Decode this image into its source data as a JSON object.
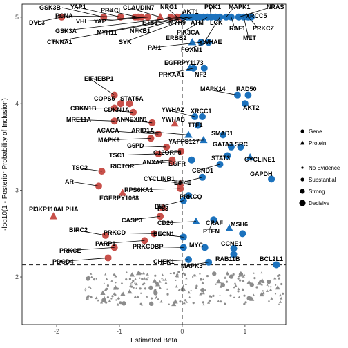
{
  "chart_data": {
    "type": "scatter",
    "xlabel": "Estimated Beta",
    "ylabel": "-log10(1 - Posterior Probability of Inclusion)",
    "xlim": [
      -2.55,
      1.65
    ],
    "ylim": [
      1.45,
      5.15
    ],
    "xticks": [
      -2,
      -1,
      0,
      1
    ],
    "yticks": [
      2,
      3,
      4,
      5
    ],
    "hline": 2.14,
    "vline": 0,
    "colors": {
      "negative": "#c8504a",
      "positive": "#1c72bd",
      "background": "#8c8c8c"
    },
    "legend": {
      "shape": {
        "entries": [
          "Gene",
          "Protein"
        ]
      },
      "size": {
        "entries": [
          "No Evidence",
          "Substantial",
          "Strong",
          "Decisive"
        ]
      }
    },
    "labeled_points": [
      {
        "label": "GSK3B",
        "x": -1.25,
        "y": 5.0,
        "shape": "circle",
        "color": "negative"
      },
      {
        "label": "DVL3",
        "x": -1.92,
        "y": 5.0,
        "shape": "circle",
        "color": "negative"
      },
      {
        "label": "YAP1",
        "x": -0.98,
        "y": 5.0,
        "shape": "circle",
        "color": "negative"
      },
      {
        "label": "PCNA",
        "x": -0.75,
        "y": 5.0,
        "shape": "circle",
        "color": "negative"
      },
      {
        "label": "PRKCI",
        "x": -0.7,
        "y": 5.0,
        "shape": "circle",
        "color": "negative"
      },
      {
        "label": "VHL",
        "x": -0.65,
        "y": 5.0,
        "shape": "circle",
        "color": "negative"
      },
      {
        "label": "YAP",
        "x": -0.55,
        "y": 5.0,
        "shape": "circle",
        "color": "negative"
      },
      {
        "label": "CLAUDIN7",
        "x": -0.35,
        "y": 5.0,
        "shape": "triangle",
        "color": "negative"
      },
      {
        "label": "ETS1",
        "x": -0.18,
        "y": 5.0,
        "shape": "circle",
        "color": "negative"
      },
      {
        "label": "NRG1",
        "x": -0.08,
        "y": 5.0,
        "shape": "circle",
        "color": "negative"
      },
      {
        "label": "GSK3A",
        "x": -0.02,
        "y": 5.0,
        "shape": "circle",
        "color": "negative"
      },
      {
        "label": "MYH11",
        "x": 0.02,
        "y": 5.0,
        "shape": "circle",
        "color": "positive"
      },
      {
        "label": "NFKB1",
        "x": 0.08,
        "y": 5.0,
        "shape": "circle",
        "color": "positive"
      },
      {
        "label": "CTNNA1",
        "x": 0.12,
        "y": 5.0,
        "shape": "circle",
        "color": "positive"
      },
      {
        "label": "SYK",
        "x": 0.16,
        "y": 5.0,
        "shape": "circle",
        "color": "positive"
      },
      {
        "label": "MYH9",
        "x": 0.22,
        "y": 5.0,
        "shape": "circle",
        "color": "positive"
      },
      {
        "label": "AKT1",
        "x": 0.28,
        "y": 5.0,
        "shape": "circle",
        "color": "positive"
      },
      {
        "label": "ATM",
        "x": 0.34,
        "y": 5.0,
        "shape": "circle",
        "color": "positive"
      },
      {
        "label": "PIK3CA",
        "x": 0.4,
        "y": 5.0,
        "shape": "circle",
        "color": "positive"
      },
      {
        "label": "PDK1",
        "x": 0.46,
        "y": 5.0,
        "shape": "circle",
        "color": "positive"
      },
      {
        "label": "LCK",
        "x": 0.53,
        "y": 5.0,
        "shape": "circle",
        "color": "positive"
      },
      {
        "label": "YWHAE",
        "x": 0.6,
        "y": 5.0,
        "shape": "circle",
        "color": "positive"
      },
      {
        "label": "MAPK1",
        "x": 0.7,
        "y": 5.0,
        "shape": "circle",
        "color": "positive"
      },
      {
        "label": "RAF1",
        "x": 0.78,
        "y": 5.0,
        "shape": "circle",
        "color": "positive"
      },
      {
        "label": "NRAS",
        "x": 0.9,
        "y": 5.0,
        "shape": "circle",
        "color": "positive"
      },
      {
        "label": "MET",
        "x": 0.98,
        "y": 5.0,
        "shape": "circle",
        "color": "positive"
      },
      {
        "label": "PRKCZ",
        "x": 1.05,
        "y": 5.0,
        "shape": "circle",
        "color": "positive"
      },
      {
        "label": "XRCC5",
        "x": 1.1,
        "y": 5.0,
        "shape": "circle",
        "color": "positive"
      },
      {
        "label": "ERBB2",
        "x": 0.16,
        "y": 4.71,
        "shape": "triangle",
        "color": "positive"
      },
      {
        "label": "PAI1",
        "x": 0.3,
        "y": 4.71,
        "shape": "circle",
        "color": "positive"
      },
      {
        "label": "FOXM1",
        "x": 0.42,
        "y": 4.71,
        "shape": "circle",
        "color": "positive"
      },
      {
        "label": "EGFRPY1173",
        "x": 0.12,
        "y": 4.41,
        "shape": "triangle",
        "color": "positive"
      },
      {
        "label": "PRKAA1",
        "x": 0.18,
        "y": 4.41,
        "shape": "circle",
        "color": "positive"
      },
      {
        "label": "NF2",
        "x": 0.35,
        "y": 4.41,
        "shape": "circle",
        "color": "positive"
      },
      {
        "label": "EIF4EBP1",
        "x": -1.08,
        "y": 4.1,
        "shape": "circle",
        "color": "negative"
      },
      {
        "label": "MAPK14",
        "x": 0.88,
        "y": 4.1,
        "shape": "circle",
        "color": "positive"
      },
      {
        "label": "RAD50",
        "x": 1.05,
        "y": 4.1,
        "shape": "circle",
        "color": "positive"
      },
      {
        "label": "COPS5",
        "x": -0.98,
        "y": 4.0,
        "shape": "circle",
        "color": "negative"
      },
      {
        "label": "STAT5A",
        "x": -0.84,
        "y": 4.0,
        "shape": "circle",
        "color": "negative"
      },
      {
        "label": "AKT2",
        "x": 1.0,
        "y": 4.0,
        "shape": "circle",
        "color": "positive"
      },
      {
        "label": "CDKN1B",
        "x": -1.08,
        "y": 3.95,
        "shape": "circle",
        "color": "negative"
      },
      {
        "label": "CDKN1A",
        "x": -0.78,
        "y": 3.9,
        "shape": "circle",
        "color": "negative"
      },
      {
        "label": "YWHAZ",
        "x": 0.2,
        "y": 3.85,
        "shape": "circle",
        "color": "positive"
      },
      {
        "label": "XRCC1",
        "x": 0.32,
        "y": 3.85,
        "shape": "circle",
        "color": "positive"
      },
      {
        "label": "MRE11A",
        "x": -1.08,
        "y": 3.8,
        "shape": "circle",
        "color": "negative"
      },
      {
        "label": "ANNEXIN1",
        "x": -0.48,
        "y": 3.78,
        "shape": "circle",
        "color": "negative"
      },
      {
        "label": "YWHAB",
        "x": -0.12,
        "y": 3.77,
        "shape": "triangle",
        "color": "negative"
      },
      {
        "label": "TTF1",
        "x": 0.25,
        "y": 3.75,
        "shape": "circle",
        "color": "positive"
      },
      {
        "label": "ACACA",
        "x": -0.38,
        "y": 3.65,
        "shape": "circle",
        "color": "negative"
      },
      {
        "label": "ARID1A",
        "x": 0.1,
        "y": 3.64,
        "shape": "triangle",
        "color": "positive"
      },
      {
        "label": "SMAD1",
        "x": 0.65,
        "y": 3.64,
        "shape": "circle",
        "color": "positive"
      },
      {
        "label": "MAPK9",
        "x": -0.5,
        "y": 3.6,
        "shape": "circle",
        "color": "negative"
      },
      {
        "label": "YAPPS127",
        "x": 0.34,
        "y": 3.58,
        "shape": "triangle",
        "color": "positive"
      },
      {
        "label": "G6PD",
        "x": -0.25,
        "y": 3.5,
        "shape": "circle",
        "color": "negative"
      },
      {
        "label": "GATA3",
        "x": 0.78,
        "y": 3.5,
        "shape": "circle",
        "color": "positive"
      },
      {
        "label": "SRC",
        "x": 0.93,
        "y": 3.5,
        "shape": "circle",
        "color": "positive"
      },
      {
        "label": "C12ORF5",
        "x": -0.02,
        "y": 3.45,
        "shape": "circle",
        "color": "negative"
      },
      {
        "label": "TSC1",
        "x": -0.38,
        "y": 3.42,
        "shape": "circle",
        "color": "negative"
      },
      {
        "label": "STAT3",
        "x": 0.72,
        "y": 3.4,
        "shape": "circle",
        "color": "positive"
      },
      {
        "label": "CYCLINE1",
        "x": 1.08,
        "y": 3.38,
        "shape": "triangle",
        "color": "positive"
      },
      {
        "label": "ANXA7",
        "x": -0.16,
        "y": 3.35,
        "shape": "circle",
        "color": "negative"
      },
      {
        "label": "EGFR",
        "x": 0.15,
        "y": 3.35,
        "shape": "circle",
        "color": "positive"
      },
      {
        "label": "RICTOR",
        "x": -0.16,
        "y": 3.33,
        "shape": "circle",
        "color": "negative"
      },
      {
        "label": "CCND1",
        "x": 0.6,
        "y": 3.3,
        "shape": "circle",
        "color": "positive"
      },
      {
        "label": "GAPDH",
        "x": 1.42,
        "y": 3.13,
        "shape": "circle",
        "color": "positive"
      },
      {
        "label": "TSC2",
        "x": -1.28,
        "y": 3.22,
        "shape": "circle",
        "color": "negative"
      },
      {
        "label": "EIF4E",
        "x": 0.32,
        "y": 3.15,
        "shape": "circle",
        "color": "positive"
      },
      {
        "label": "CYCLINB1",
        "x": -0.03,
        "y": 3.08,
        "shape": "triangle",
        "color": "negative"
      },
      {
        "label": "AR",
        "x": -1.33,
        "y": 3.05,
        "shape": "circle",
        "color": "negative"
      },
      {
        "label": "RPS6KA1",
        "x": -0.03,
        "y": 3.02,
        "shape": "circle",
        "color": "negative"
      },
      {
        "label": "EGFRPY1068",
        "x": -0.95,
        "y": 2.97,
        "shape": "triangle",
        "color": "negative"
      },
      {
        "label": "PRKCQ",
        "x": 0.1,
        "y": 2.94,
        "shape": "circle",
        "color": "positive"
      },
      {
        "label": "BID",
        "x": 0.02,
        "y": 2.88,
        "shape": "circle",
        "color": "positive"
      },
      {
        "label": "P53",
        "x": -0.3,
        "y": 2.8,
        "shape": "triangle",
        "color": "negative"
      },
      {
        "label": "PI3KP110ALPHA",
        "x": -2.05,
        "y": 2.7,
        "shape": "triangle",
        "color": "negative"
      },
      {
        "label": "CASP3",
        "x": -0.35,
        "y": 2.7,
        "shape": "circle",
        "color": "negative"
      },
      {
        "label": "PTEN",
        "x": 0.5,
        "y": 2.66,
        "shape": "circle",
        "color": "positive"
      },
      {
        "label": "CD20",
        "x": 0.22,
        "y": 2.64,
        "shape": "triangle",
        "color": "positive"
      },
      {
        "label": "CRAF",
        "x": 0.75,
        "y": 2.56,
        "shape": "triangle",
        "color": "positive"
      },
      {
        "label": "MSH6",
        "x": 0.96,
        "y": 2.5,
        "shape": "circle",
        "color": "positive"
      },
      {
        "label": "BIRC2",
        "x": -1.22,
        "y": 2.48,
        "shape": "circle",
        "color": "negative"
      },
      {
        "label": "PRKCD",
        "x": -0.45,
        "y": 2.5,
        "shape": "circle",
        "color": "negative"
      },
      {
        "label": "BECN1",
        "x": 0.02,
        "y": 2.46,
        "shape": "circle",
        "color": "positive"
      },
      {
        "label": "PARP1",
        "x": -0.6,
        "y": 2.42,
        "shape": "circle",
        "color": "negative"
      },
      {
        "label": "PRKCDBP",
        "x": 0.02,
        "y": 2.34,
        "shape": "circle",
        "color": "positive"
      },
      {
        "label": "MYC",
        "x": 0.36,
        "y": 2.34,
        "shape": "circle",
        "color": "positive"
      },
      {
        "label": "CCNE1",
        "x": 0.82,
        "y": 2.33,
        "shape": "circle",
        "color": "positive"
      },
      {
        "label": "PRKCE",
        "x": -1.08,
        "y": 2.34,
        "shape": "circle",
        "color": "negative"
      },
      {
        "label": "RAB11B",
        "x": 0.82,
        "y": 2.26,
        "shape": "circle",
        "color": "positive"
      },
      {
        "label": "PDCD4",
        "x": -1.18,
        "y": 2.22,
        "shape": "circle",
        "color": "negative"
      },
      {
        "label": "CHEK1",
        "x": 0.1,
        "y": 2.2,
        "shape": "circle",
        "color": "positive"
      },
      {
        "label": "MAPK3",
        "x": 0.42,
        "y": 2.17,
        "shape": "circle",
        "color": "positive"
      },
      {
        "label": "BCL2L1",
        "x": 1.5,
        "y": 2.14,
        "shape": "circle",
        "color": "positive"
      }
    ]
  }
}
